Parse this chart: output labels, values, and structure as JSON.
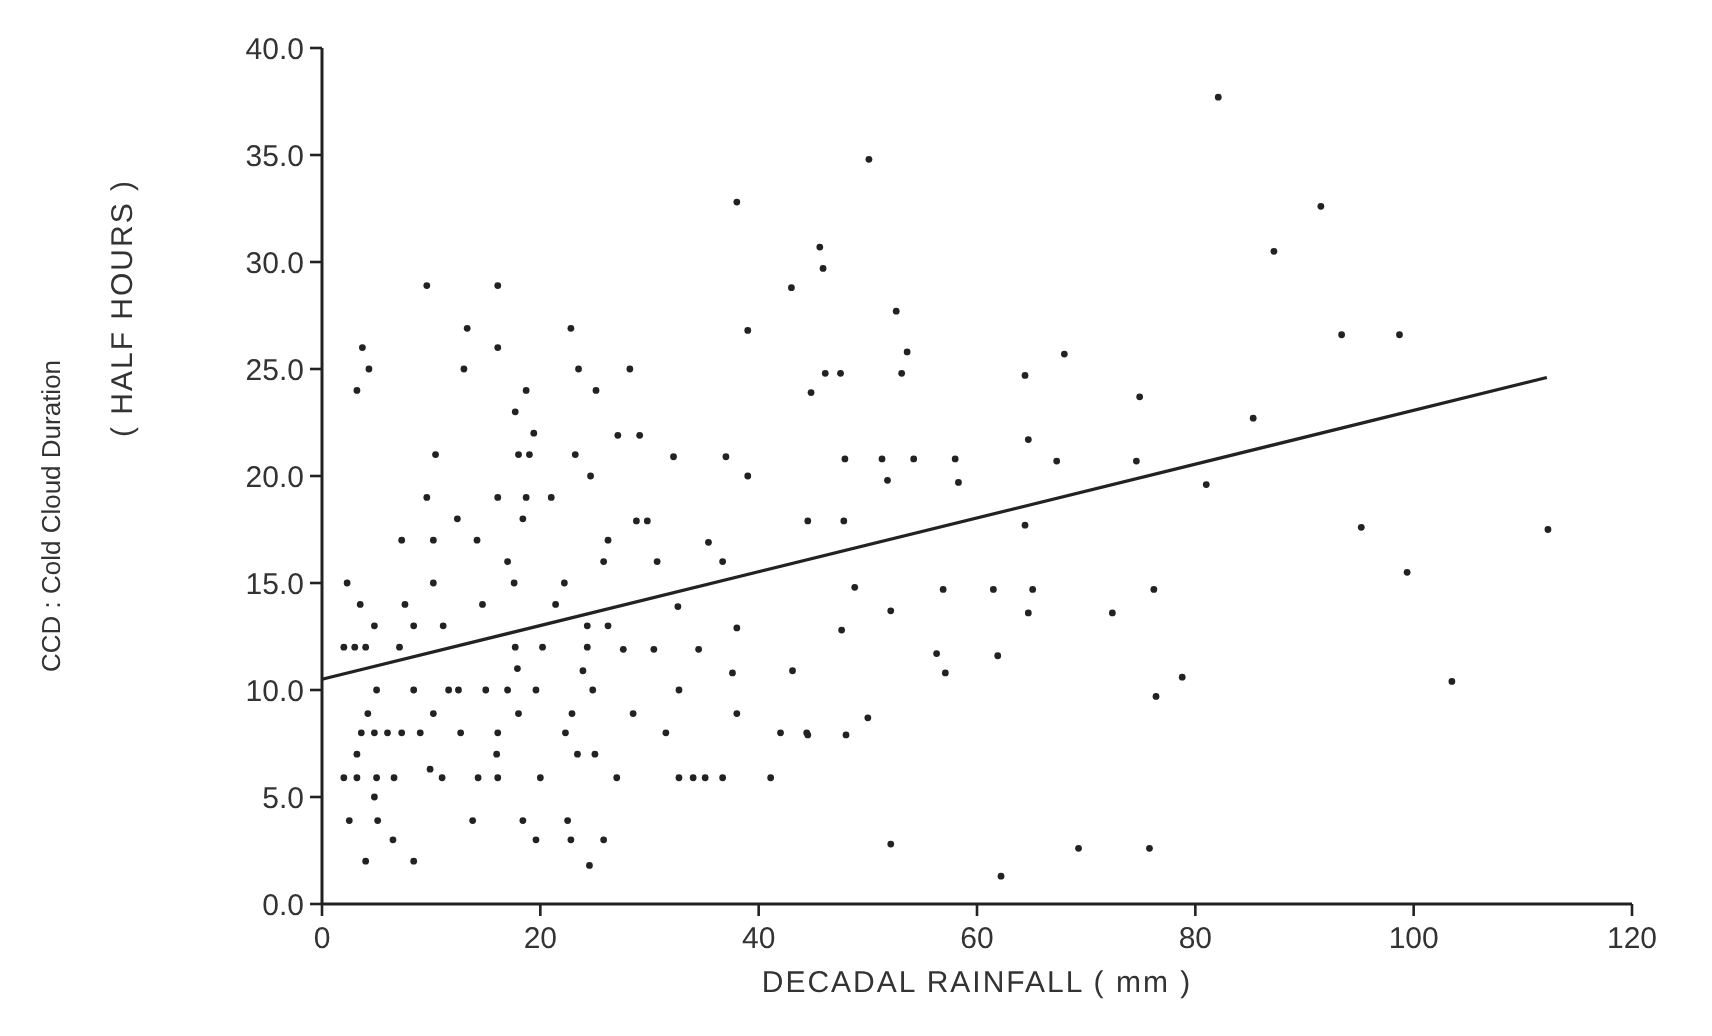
{
  "chart_data": {
    "type": "scatter",
    "xlabel": "DECADAL RAINFALL ( mm )",
    "ylabel": "( HALF HOURS )",
    "annotations": [
      "CCD : Cold Cloud Duration"
    ],
    "xlim": [
      0,
      120
    ],
    "xticks": [
      0,
      20,
      40,
      60,
      80,
      100,
      120
    ],
    "ylim": [
      0,
      40
    ],
    "yticks": [
      {
        "value": 0,
        "label": "0.0"
      },
      {
        "value": 5,
        "label": "5.0"
      },
      {
        "value": 10,
        "label": "10.0"
      },
      {
        "value": 15,
        "label": "15.0"
      },
      {
        "value": 20,
        "label": "20.0"
      },
      {
        "value": 25,
        "label": "25.0"
      },
      {
        "value": 30,
        "label": "30.0"
      },
      {
        "value": 35,
        "label": "35.0"
      },
      {
        "value": 40,
        "label": "40.0"
      }
    ],
    "grid": false,
    "series": [
      {
        "marker": "circle",
        "color": "#222222",
        "x": [
          9.6,
          16.1,
          38,
          43,
          13.3,
          22.8,
          39,
          3.7,
          16.1,
          4.3,
          13,
          23.5,
          28.2,
          3.2,
          18.7,
          25.1,
          17.7,
          19.4,
          27.1,
          29.1,
          10.4,
          18,
          19,
          23.2,
          32.2,
          37,
          24.6,
          39,
          9.6,
          16.1,
          18.7,
          21,
          12.4,
          18.4,
          28.8,
          29.8,
          7.3,
          10.2,
          14.2,
          26.2,
          35.4,
          17,
          25.8,
          30.7,
          36.7,
          2.3,
          10.2,
          17.6,
          22.2,
          44.5,
          3.5,
          7.6,
          14.7,
          21.4,
          32.6,
          4.8,
          8.4,
          11.1,
          24.3,
          26.2,
          38,
          2,
          3,
          4,
          7.1,
          17.7,
          20.2,
          24.3,
          27.6,
          30.4,
          34.5,
          17.9,
          23.9,
          37.6,
          43.1,
          5,
          8.4,
          11.6,
          12.5,
          15,
          17,
          19.6,
          24.8,
          32.7,
          4.2,
          10.2,
          18,
          22.9,
          28.5,
          38,
          3.6,
          4.8,
          6,
          7.3,
          9,
          12.7,
          16.1,
          22.3,
          31.5,
          42,
          44.4,
          3.2,
          16,
          23.4,
          25,
          9.9,
          2,
          3.2,
          5,
          6.6,
          11,
          14.3,
          16.1,
          20,
          27,
          32.7,
          34,
          35.1,
          36.7,
          41.1,
          4.8,
          2.5,
          5.1,
          13.8,
          18.4,
          22.5,
          6.5,
          19.6,
          22.8,
          25.8,
          4,
          8.4,
          24.5,
          82.1,
          50.1,
          45.6,
          45.9,
          87.2,
          52.6,
          53.6,
          68,
          46.1,
          47.5,
          53.1,
          64.4,
          44.8,
          74.9,
          85.3,
          64.7,
          47.9,
          51.3,
          54.2,
          58,
          67.3,
          74.6,
          51.8,
          58.3,
          81,
          47.8,
          64.4,
          48.8,
          56.9,
          61.5,
          65.1,
          76.2,
          52.1,
          64.7,
          72.4,
          47.6,
          56.3,
          61.9,
          57.1,
          78.8,
          76.4,
          50,
          44.5,
          48,
          52.1,
          69.3,
          75.8,
          62.2,
          91.5,
          93.4,
          98.7,
          95.2,
          112.3,
          99.4,
          103.5
        ],
        "values": [
          28.9,
          28.9,
          32.8,
          28.8,
          26.9,
          26.9,
          26.8,
          26,
          26,
          25,
          25,
          25,
          25,
          24,
          24,
          24,
          23,
          22,
          21.9,
          21.9,
          21,
          21,
          21,
          21,
          20.9,
          20.9,
          20,
          20,
          19,
          19,
          19,
          19,
          18,
          18,
          17.9,
          17.9,
          17,
          17,
          17,
          17,
          16.9,
          16,
          16,
          16,
          16,
          15,
          15,
          15,
          15,
          17.9,
          14,
          14,
          14,
          14,
          13.9,
          13,
          13,
          13,
          13,
          13,
          12.9,
          12,
          12,
          12,
          12,
          12,
          12,
          12,
          11.9,
          11.9,
          11.9,
          11,
          10.9,
          10.8,
          10.9,
          10,
          10,
          10,
          10,
          10,
          10,
          10,
          10,
          10,
          8.9,
          8.9,
          8.9,
          8.9,
          8.9,
          8.9,
          8,
          8,
          8,
          8,
          8,
          8,
          8,
          8,
          8,
          8,
          8,
          7,
          7,
          7,
          7,
          6.3,
          5.9,
          5.9,
          5.9,
          5.9,
          5.9,
          5.9,
          5.9,
          5.9,
          5.9,
          5.9,
          5.9,
          5.9,
          5.9,
          5.9,
          5,
          3.9,
          3.9,
          3.9,
          3.9,
          3.9,
          3,
          3,
          3,
          3,
          2,
          2,
          1.8,
          37.7,
          34.8,
          30.7,
          29.7,
          30.5,
          27.7,
          25.8,
          25.7,
          24.8,
          24.8,
          24.8,
          24.7,
          23.9,
          23.7,
          22.7,
          21.7,
          20.8,
          20.8,
          20.8,
          20.8,
          20.7,
          20.7,
          19.8,
          19.7,
          19.6,
          17.9,
          17.7,
          14.8,
          14.7,
          14.7,
          14.7,
          14.7,
          13.7,
          13.6,
          13.6,
          12.8,
          11.7,
          11.6,
          10.8,
          10.6,
          9.7,
          8.7,
          7.9,
          7.9,
          2.8,
          2.6,
          2.6,
          1.3,
          32.6,
          26.6,
          26.6,
          17.6,
          17.5,
          15.5,
          10.4
        ]
      },
      {
        "type": "line",
        "color": "#222222",
        "x": [
          0,
          112.2
        ],
        "values": [
          10.5,
          24.6
        ]
      }
    ]
  }
}
